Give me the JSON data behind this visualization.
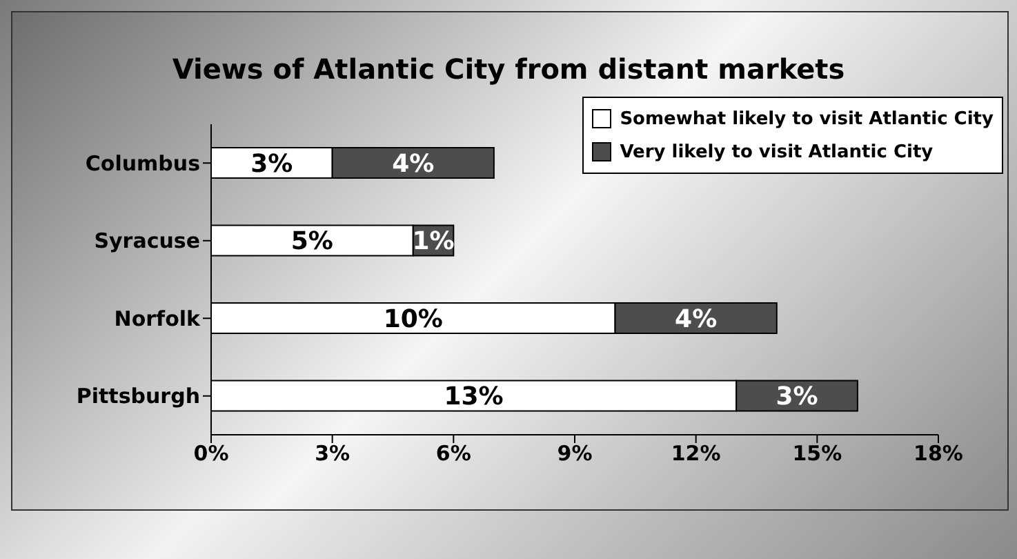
{
  "chart_data": {
    "type": "bar",
    "orientation": "horizontal",
    "stacked": true,
    "title": "Views of Atlantic City from distant markets",
    "categories": [
      "Columbus",
      "Syracuse",
      "Norfolk",
      "Pittsburgh"
    ],
    "series": [
      {
        "name": "Somewhat likely to visit Atlantic City",
        "color": "#ffffff",
        "values": [
          3,
          5,
          10,
          13
        ],
        "value_labels": [
          "3%",
          "5%",
          "10%",
          "13%"
        ]
      },
      {
        "name": "Very likely to visit Atlantic City",
        "color": "#4d4d4d",
        "values": [
          4,
          1,
          4,
          3
        ],
        "value_labels": [
          "4%",
          "1%",
          "4%",
          "3%"
        ]
      }
    ],
    "xlim": [
      0,
      18
    ],
    "xticks": [
      {
        "value": 0,
        "label": "0%"
      },
      {
        "value": 3,
        "label": "3%"
      },
      {
        "value": 6,
        "label": "6%"
      },
      {
        "value": 9,
        "label": "9%"
      },
      {
        "value": 12,
        "label": "12%"
      },
      {
        "value": 15,
        "label": "15%"
      },
      {
        "value": 18,
        "label": "18%"
      }
    ],
    "grid": false,
    "legend": "top right"
  }
}
